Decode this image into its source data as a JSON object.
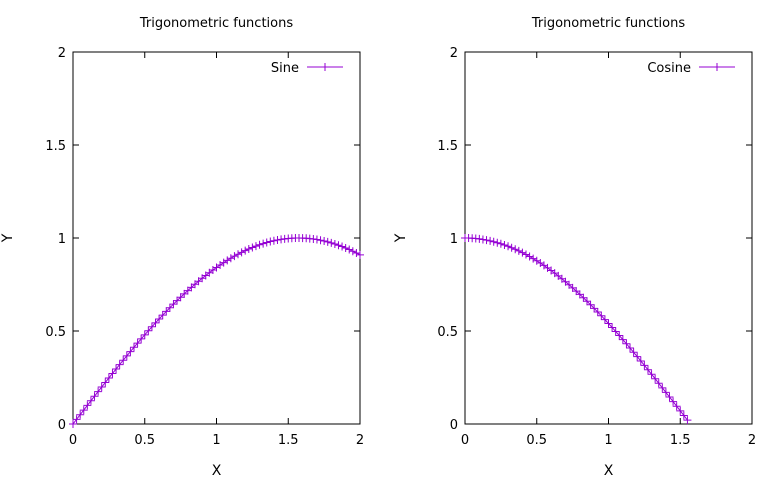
{
  "chart_data": [
    {
      "type": "line",
      "title": "Trigonometric functions",
      "xlabel": "X",
      "ylabel": "Y",
      "xlim": [
        0,
        2
      ],
      "ylim": [
        0,
        2
      ],
      "xticks": [
        "0",
        "0.5",
        "1",
        "1.5",
        "2"
      ],
      "yticks": [
        "0",
        "0.5",
        "1",
        "1.5",
        "2"
      ],
      "grid": false,
      "legend_position": "top-right",
      "color": "#9400d3",
      "marker": "plus",
      "series": [
        {
          "name": "Sine",
          "function": "sin(x)",
          "x_start": 0,
          "x_end": 2.0,
          "x_step": 0.025
        }
      ]
    },
    {
      "type": "line",
      "title": "Trigonometric functions",
      "xlabel": "X",
      "ylabel": "Y",
      "xlim": [
        0,
        2
      ],
      "ylim": [
        0,
        2
      ],
      "xticks": [
        "0",
        "0.5",
        "1",
        "1.5",
        "2"
      ],
      "yticks": [
        "0",
        "0.5",
        "1",
        "1.5",
        "2"
      ],
      "grid": false,
      "legend_position": "top-right",
      "color": "#9400d3",
      "marker": "plus",
      "series": [
        {
          "name": "Cosine",
          "function": "cos(x)",
          "x_start": 0,
          "x_end": 1.55,
          "x_step": 0.025
        }
      ]
    }
  ]
}
